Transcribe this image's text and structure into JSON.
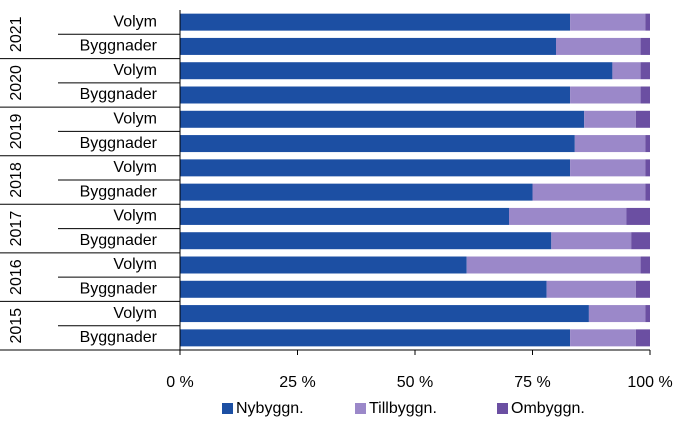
{
  "chart_data": {
    "type": "stacked_barh",
    "groups": [
      "2021",
      "2020",
      "2019",
      "2018",
      "2017",
      "2016",
      "2015"
    ],
    "categories": [
      "Volym",
      "Byggnader",
      "Volym",
      "Byggnader",
      "Volym",
      "Byggnader",
      "Volym",
      "Byggnader",
      "Volym",
      "Byggnader",
      "Volym",
      "Byggnader",
      "Volym",
      "Byggnader"
    ],
    "series": [
      {
        "name": "Nybyggn.",
        "color": "#1c4fa3",
        "values": [
          83,
          80,
          92,
          83,
          86,
          84,
          83,
          75,
          70,
          79,
          61,
          78,
          87,
          83
        ]
      },
      {
        "name": "Tillbyggn.",
        "color": "#9b88c9",
        "values": [
          16,
          18,
          6,
          15,
          11,
          15,
          16,
          24,
          25,
          17,
          37,
          19,
          12,
          14
        ]
      },
      {
        "name": "Ombyggn.",
        "color": "#6b4fa2",
        "values": [
          1,
          2,
          2,
          2,
          3,
          1,
          1,
          1,
          5,
          4,
          2,
          3,
          1,
          3
        ]
      }
    ],
    "xlim": [
      0,
      100
    ],
    "xticks": [
      {
        "value": 0,
        "label": "0 %"
      },
      {
        "value": 25,
        "label": "25 %"
      },
      {
        "value": 50,
        "label": "50 %"
      },
      {
        "value": 75,
        "label": "75 %"
      },
      {
        "value": 100,
        "label": "100 %"
      }
    ],
    "legend": "bottom"
  }
}
